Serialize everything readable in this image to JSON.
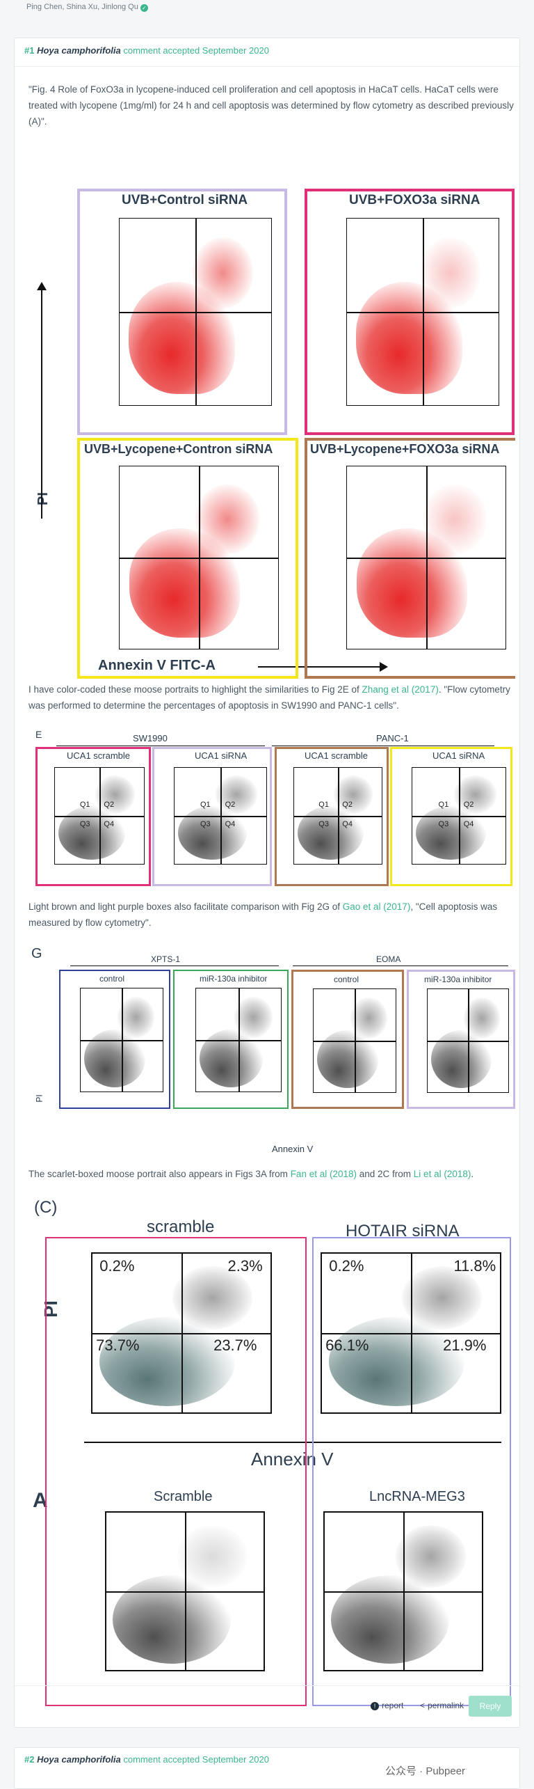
{
  "authors": "Ping Chen, Shina Xu, Jinlong Qu",
  "comment1": {
    "num": "#1",
    "user": "Hoya camphorifolia",
    "meta": "comment accepted September 2020",
    "para1": "\"Fig. 4 Role of FoxO3a in lycopene-induced cell proliferation and cell apoptosis in HaCaT cells. HaCaT cells were treated with lycopene (1mg/ml) for 24 h and cell apoptosis was determined by flow cytometry as described previously (A)\".",
    "para2_a": "I have color-coded these moose portraits to highlight the similarities to Fig 2E of ",
    "para2_link": "Zhang et al (2017)",
    "para2_b": ". \"Flow cytometry was performed to determine the percentages of apoptosis in SW1990 and PANC-1 cells\".",
    "para3_a": "Light brown and light purple boxes also facilitate comparison with Fig 2G of ",
    "para3_link": "Gao et al (2017)",
    "para3_b": ", \"Cell apoptosis was measured by flow cytometry\".",
    "para4_a": "The scarlet-boxed moose portrait also appears in Figs 3A from ",
    "para4_link1": "Fan et al (2018)",
    "para4_mid": " and 2C from ",
    "para4_link2": "Li et al (2018)",
    "para4_end": "."
  },
  "fig1": {
    "panels": [
      "UVB+Control siRNA",
      "UVB+FOXO3a siRNA",
      "UVB+Lycopene+Contron siRNA",
      "UVB+Lycopene+FOXO3a siRNA"
    ],
    "xlabel": "Annexin V FITC-A",
    "ylabel": "PI"
  },
  "fig2": {
    "letter": "E",
    "groups": [
      "SW1990",
      "PANC-1"
    ],
    "panels": [
      "UCA1 scramble",
      "UCA1 siRNA",
      "UCA1 scramble",
      "UCA1 siRNA"
    ],
    "quadrants": [
      "Q1",
      "Q2",
      "Q3",
      "Q4"
    ]
  },
  "fig3": {
    "letter": "G",
    "groups": [
      "XPTS-1",
      "EOMA"
    ],
    "panels": [
      "control",
      "miR-130a inhibitor",
      "control",
      "miR-130a inhibitor"
    ],
    "xlabel": "Annexin V",
    "ylabel": "PI"
  },
  "fig4": {
    "letter_c": "(C)",
    "letter_a": "A",
    "top_panels": [
      "scramble",
      "HOTAIR siRNA"
    ],
    "bottom_panels": [
      "Scramble",
      "LncRNA-MEG3"
    ],
    "xlabel": "Annexin V",
    "ylabel": "PI",
    "pct_scramble": [
      "0.2%",
      "2.3%",
      "73.7%",
      "23.7%"
    ],
    "pct_hotair": [
      "0.2%",
      "11.8%",
      "66.1%",
      "21.9%"
    ]
  },
  "footer": {
    "report": "report",
    "permalink": "permalink",
    "reply": "Reply"
  },
  "comment2": {
    "num": "#2",
    "user": "Hoya camphorifolia",
    "meta": "comment accepted September 2020"
  },
  "watermark": "公众号 · Pubpeer",
  "colors": {
    "accent": "#3bb58c",
    "purple": "#c8b8e6",
    "magenta": "#e0307a",
    "yellow": "#f5e61a",
    "brown": "#b07850",
    "navy": "#2f3f9a",
    "green": "#3aa85a",
    "lightpurple": "#9a9be8"
  }
}
